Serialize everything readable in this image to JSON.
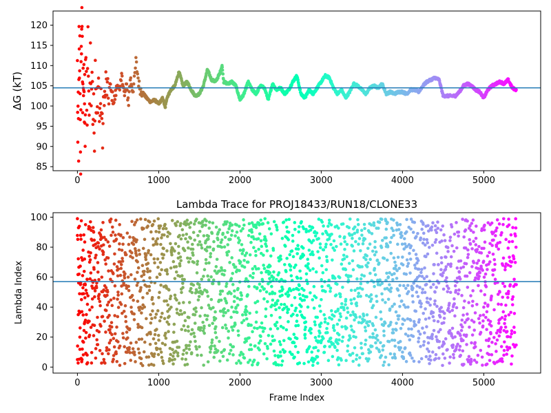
{
  "chart_data": [
    {
      "type": "scatter",
      "title": "",
      "xlabel": "",
      "ylabel": "ΔG (kT)",
      "xlim": [
        -300,
        5700
      ],
      "ylim": [
        84,
        123.5
      ],
      "xticks": [
        0,
        1000,
        2000,
        3000,
        4000,
        5000
      ],
      "yticks": [
        85,
        90,
        95,
        100,
        105,
        110,
        115,
        120
      ],
      "grid": false,
      "colormap": "rainbow (red at early frames to violet at late frames)",
      "reference_line": {
        "y": 104.5,
        "color": "#1f77b4"
      },
      "x_range": [
        0,
        5400
      ],
      "series": [
        {
          "points": [
            [
              0,
              110
            ],
            [
              5,
              90
            ],
            [
              10,
              102
            ],
            [
              15,
              89
            ],
            [
              20,
              118
            ],
            [
              25,
              105
            ],
            [
              30,
              115
            ],
            [
              35,
              96
            ],
            [
              40,
              85.5
            ],
            [
              45,
              108
            ],
            [
              50,
              116
            ],
            [
              55,
              122.5
            ],
            [
              60,
              119
            ],
            [
              65,
              95
            ],
            [
              70,
              110
            ],
            [
              75,
              100
            ],
            [
              80,
              113
            ],
            [
              85,
              97
            ],
            [
              90,
              104
            ],
            [
              95,
              88
            ],
            [
              100,
              112
            ],
            [
              110,
              106
            ],
            [
              120,
              95
            ],
            [
              130,
              118
            ],
            [
              140,
              103
            ],
            [
              150,
              99
            ],
            [
              160,
              114
            ],
            [
              170,
              101
            ],
            [
              180,
              109
            ],
            [
              190,
              96
            ],
            [
              200,
              105
            ],
            [
              210,
              87.5
            ],
            [
              220,
              113
            ],
            [
              230,
              99
            ],
            [
              240,
              102
            ],
            [
              250,
              98
            ],
            [
              260,
              106
            ],
            [
              270,
              100
            ],
            [
              280,
              98
            ],
            [
              290,
              103
            ],
            [
              300,
              97
            ],
            [
              310,
              92
            ],
            [
              320,
              99
            ],
            [
              330,
              104
            ],
            [
              340,
              101
            ],
            [
              350,
              106
            ],
            [
              380,
              102
            ],
            [
              400,
              105
            ],
            [
              420,
              103
            ],
            [
              450,
              101
            ],
            [
              480,
              104
            ],
            [
              500,
              106
            ],
            [
              520,
              103
            ],
            [
              550,
              108
            ],
            [
              580,
              102
            ],
            [
              600,
              105
            ],
            [
              630,
              101
            ],
            [
              650,
              107
            ],
            [
              680,
              104
            ],
            [
              700,
              106
            ],
            [
              720,
              111
            ],
            [
              740,
              108
            ],
            [
              760,
              105
            ],
            [
              780,
              104
            ],
            [
              800,
              103.5
            ],
            [
              850,
              102
            ],
            [
              900,
              101
            ],
            [
              950,
              101.5
            ],
            [
              1000,
              100.5
            ],
            [
              1050,
              102
            ],
            [
              1080,
              99.5
            ],
            [
              1100,
              102
            ],
            [
              1150,
              104
            ],
            [
              1200,
              105
            ],
            [
              1250,
              108.5
            ],
            [
              1300,
              105
            ],
            [
              1350,
              106
            ],
            [
              1400,
              104
            ],
            [
              1450,
              102.5
            ],
            [
              1500,
              103
            ],
            [
              1550,
              105
            ],
            [
              1600,
              109
            ],
            [
              1650,
              106.5
            ],
            [
              1700,
              106
            ],
            [
              1750,
              108
            ],
            [
              1780,
              110
            ],
            [
              1800,
              106
            ],
            [
              1850,
              105.5
            ],
            [
              1900,
              106
            ],
            [
              1950,
              105
            ],
            [
              2000,
              101.5
            ],
            [
              2050,
              103
            ],
            [
              2100,
              106
            ],
            [
              2150,
              104
            ],
            [
              2200,
              103
            ],
            [
              2250,
              105
            ],
            [
              2300,
              104.5
            ],
            [
              2350,
              101.5
            ],
            [
              2400,
              105.5
            ],
            [
              2450,
              104
            ],
            [
              2500,
              104.5
            ],
            [
              2550,
              103
            ],
            [
              2600,
              104
            ],
            [
              2650,
              106
            ],
            [
              2700,
              107.5
            ],
            [
              2750,
              103
            ],
            [
              2800,
              102
            ],
            [
              2850,
              104
            ],
            [
              2900,
              103
            ],
            [
              2950,
              104.5
            ],
            [
              3000,
              106
            ],
            [
              3050,
              107.5
            ],
            [
              3100,
              107
            ],
            [
              3150,
              104.5
            ],
            [
              3200,
              103
            ],
            [
              3250,
              104
            ],
            [
              3300,
              102
            ],
            [
              3350,
              103.5
            ],
            [
              3400,
              105.5
            ],
            [
              3450,
              105
            ],
            [
              3500,
              104
            ],
            [
              3550,
              103
            ],
            [
              3600,
              104.5
            ],
            [
              3650,
              105
            ],
            [
              3700,
              104.5
            ],
            [
              3750,
              105.5
            ],
            [
              3800,
              103
            ],
            [
              3850,
              103.5
            ],
            [
              3900,
              103
            ],
            [
              3950,
              103.5
            ],
            [
              4000,
              103.5
            ],
            [
              4050,
              103
            ],
            [
              4100,
              104
            ],
            [
              4150,
              104
            ],
            [
              4200,
              103.5
            ],
            [
              4250,
              105
            ],
            [
              4300,
              106
            ],
            [
              4350,
              106.5
            ],
            [
              4400,
              107
            ],
            [
              4450,
              106.5
            ],
            [
              4500,
              102.5
            ],
            [
              4550,
              102.5
            ],
            [
              4600,
              102.5
            ],
            [
              4650,
              102.5
            ],
            [
              4700,
              103.5
            ],
            [
              4750,
              105
            ],
            [
              4800,
              105.5
            ],
            [
              4850,
              105
            ],
            [
              4900,
              104
            ],
            [
              4950,
              103.5
            ],
            [
              5000,
              102
            ],
            [
              5050,
              104
            ],
            [
              5100,
              105
            ],
            [
              5150,
              105.5
            ],
            [
              5200,
              106
            ],
            [
              5250,
              105.5
            ],
            [
              5300,
              106.5
            ],
            [
              5350,
              104.5
            ],
            [
              5400,
              104
            ]
          ]
        }
      ]
    },
    {
      "type": "scatter",
      "title": "Lambda Trace for PROJ18433/RUN18/CLONE33",
      "xlabel": "Frame Index",
      "ylabel": "Lambda Index",
      "xlim": [
        -300,
        5700
      ],
      "ylim": [
        -4,
        103
      ],
      "xticks": [
        0,
        1000,
        2000,
        3000,
        4000,
        5000
      ],
      "yticks": [
        0,
        20,
        40,
        60,
        80,
        100
      ],
      "grid": false,
      "colormap": "rainbow (red at early frames to violet at late frames)",
      "reference_line": {
        "y": 57,
        "color": "#1f77b4"
      },
      "x_range": [
        0,
        5400
      ],
      "value_range": [
        1,
        99
      ],
      "series": [
        {
          "points": [
            [
              0,
              99
            ],
            [
              0,
              5
            ],
            [
              10,
              35
            ],
            [
              20,
              62
            ],
            [
              30,
              20
            ],
            [
              40,
              88
            ],
            [
              50,
              45
            ],
            [
              60,
              12
            ],
            [
              70,
              78
            ],
            [
              80,
              55
            ],
            [
              90,
              30
            ],
            [
              100,
              95
            ],
            [
              120,
              8
            ],
            [
              150,
              70
            ],
            [
              180,
              40
            ],
            [
              200,
              90
            ],
            [
              250,
              15
            ],
            [
              300,
              60
            ],
            [
              350,
              85
            ],
            [
              400,
              25
            ],
            [
              500,
              50
            ],
            [
              600,
              75
            ],
            [
              700,
              10
            ],
            [
              800,
              92
            ],
            [
              900,
              35
            ],
            [
              1000,
              18
            ],
            [
              1100,
              65
            ],
            [
              1200,
              48
            ],
            [
              1300,
              88
            ],
            [
              1400,
              22
            ],
            [
              1500,
              55
            ],
            [
              1600,
              80
            ],
            [
              1700,
              12
            ],
            [
              1800,
              95
            ],
            [
              1900,
              40
            ],
            [
              2000,
              8
            ],
            [
              2100,
              70
            ],
            [
              2200,
              30
            ],
            [
              2300,
              85
            ],
            [
              2400,
              50
            ],
            [
              2500,
              15
            ],
            [
              2600,
              90
            ],
            [
              2700,
              60
            ],
            [
              2800,
              25
            ],
            [
              2900,
              75
            ],
            [
              3000,
              45
            ],
            [
              3100,
              98
            ],
            [
              3200,
              5
            ],
            [
              3300,
              65
            ],
            [
              3400,
              35
            ],
            [
              3500,
              88
            ],
            [
              3600,
              20
            ],
            [
              3700,
              55
            ],
            [
              3800,
              92
            ],
            [
              3900,
              42
            ],
            [
              4000,
              10
            ],
            [
              4100,
              72
            ],
            [
              4200,
              30
            ],
            [
              4300,
              85
            ],
            [
              4400,
              50
            ],
            [
              4500,
              15
            ],
            [
              4600,
              95
            ],
            [
              4700,
              60
            ],
            [
              4800,
              5
            ],
            [
              4900,
              78
            ],
            [
              5000,
              40
            ],
            [
              5100,
              90
            ],
            [
              5200,
              25
            ],
            [
              5300,
              68
            ],
            [
              5400,
              55
            ]
          ]
        }
      ]
    }
  ]
}
